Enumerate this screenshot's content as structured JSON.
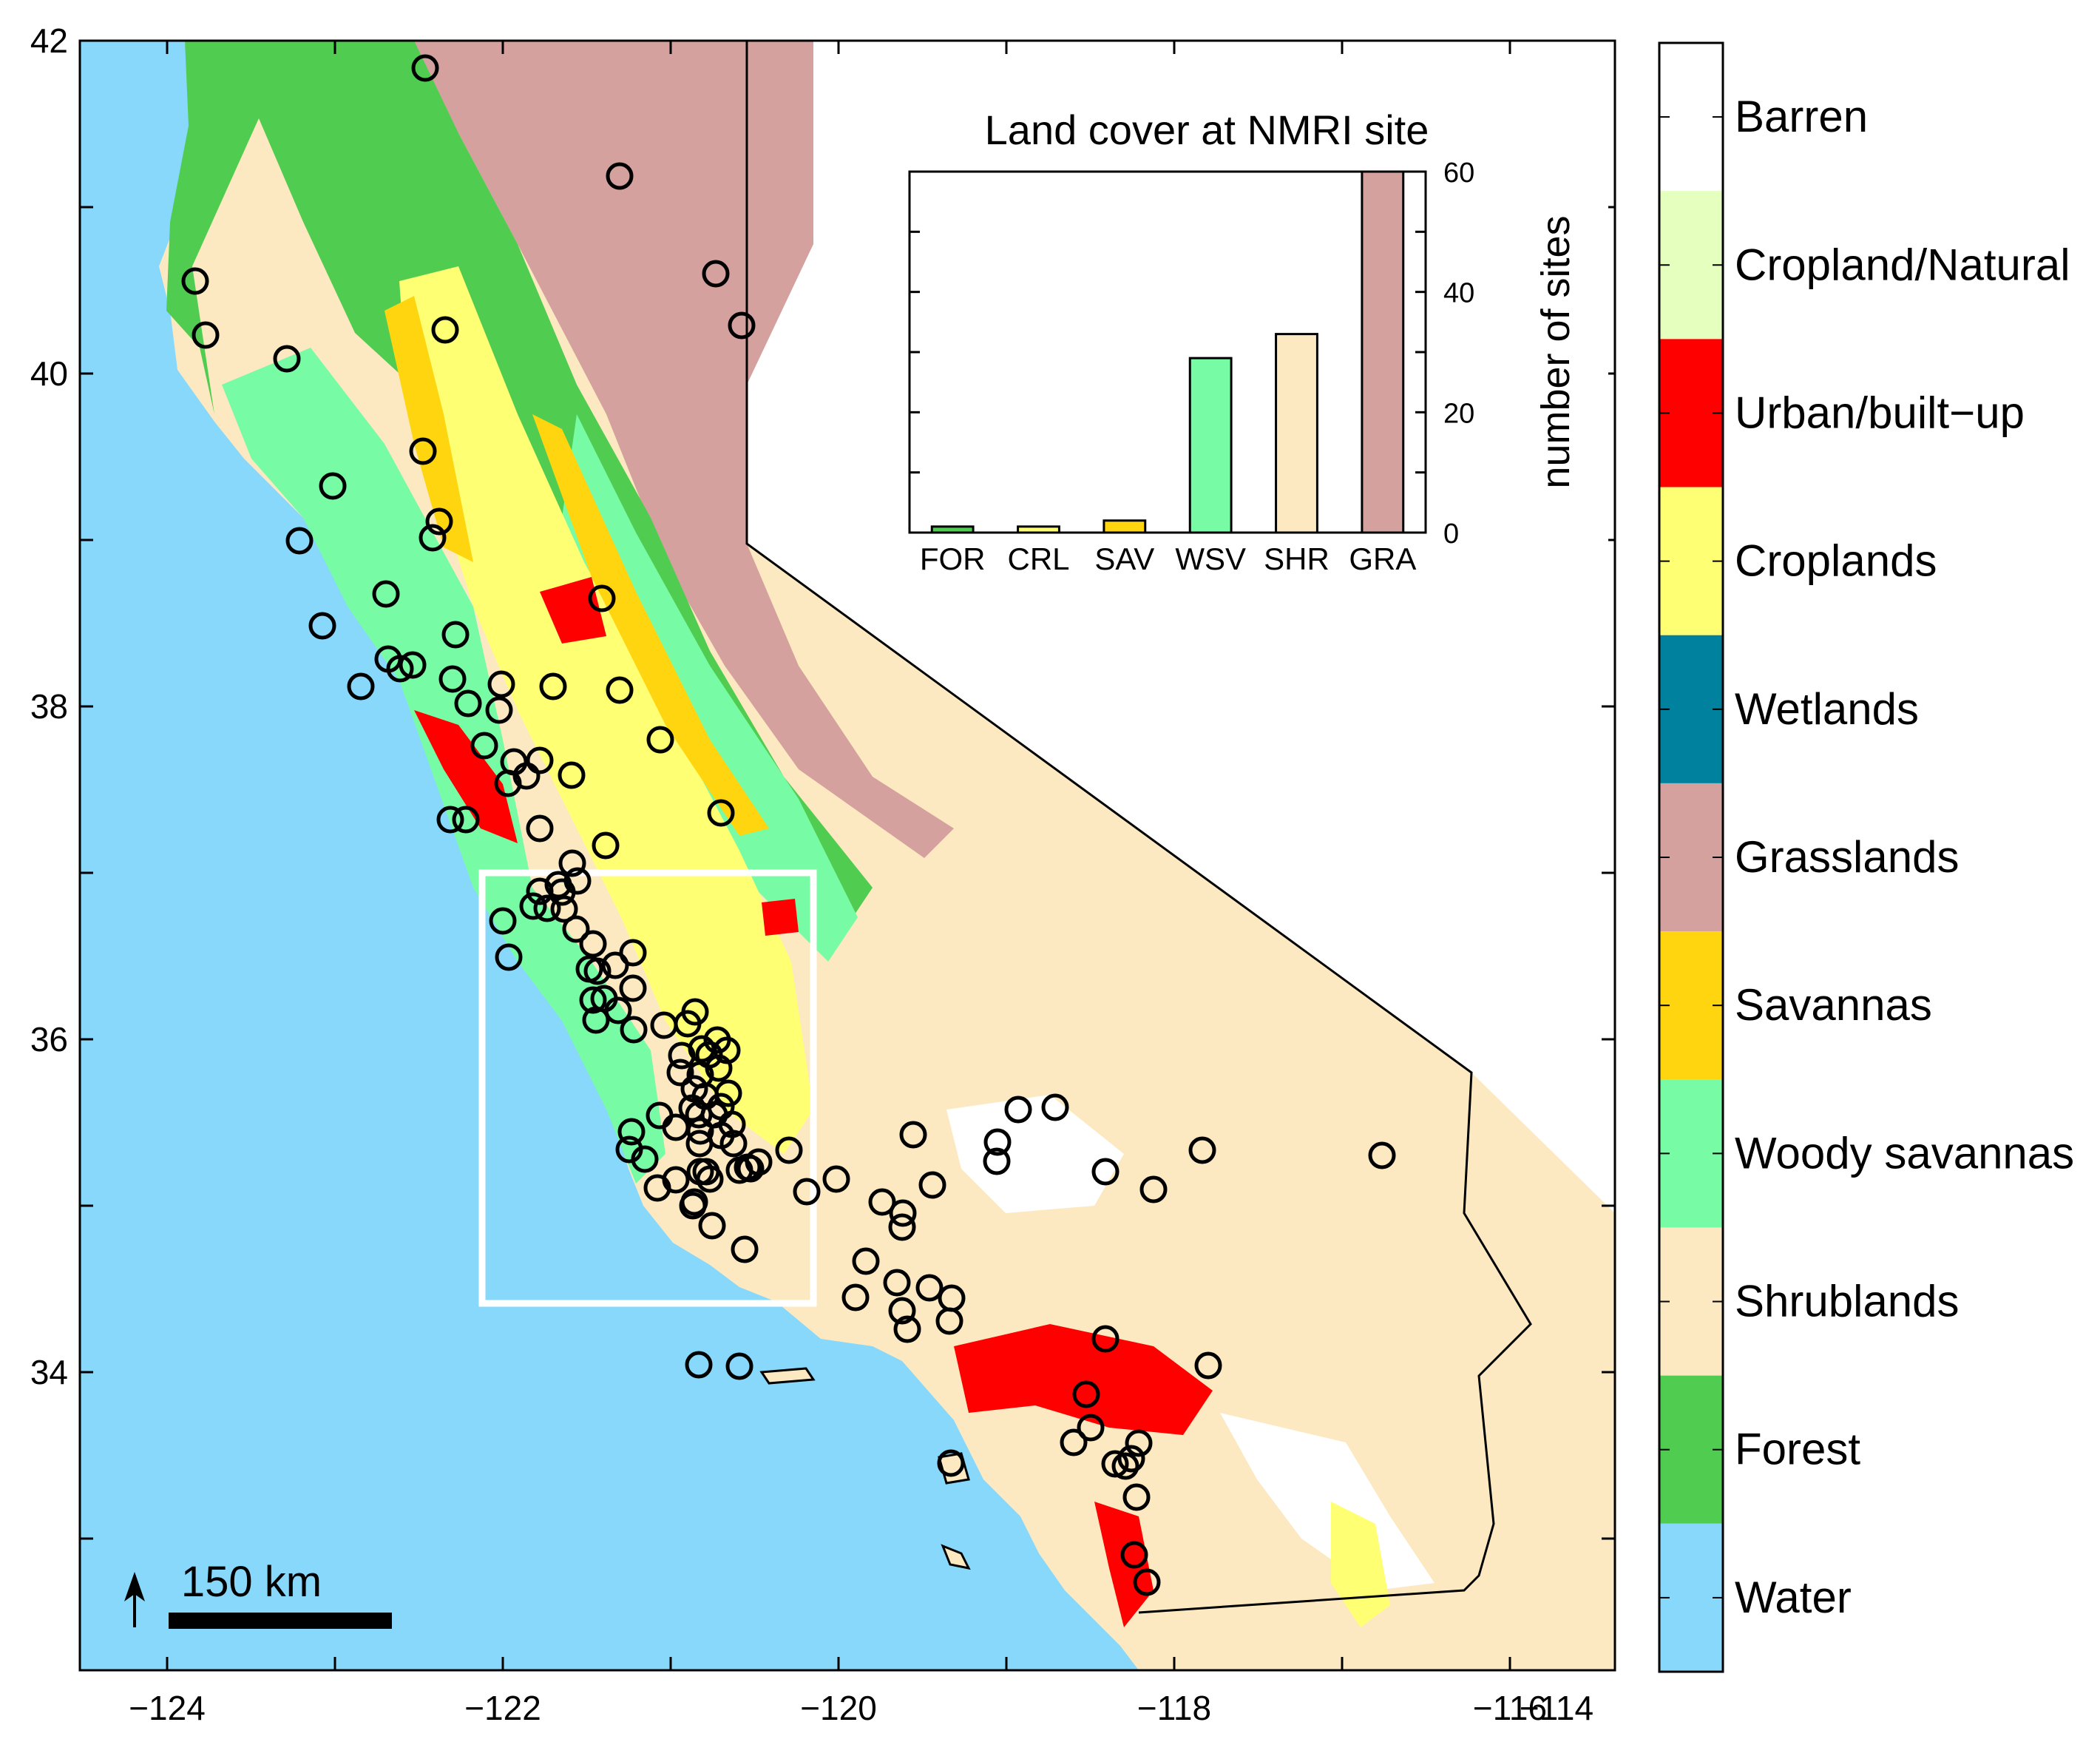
{
  "map": {
    "x_ticks": [
      "−124",
      "−122",
      "−120",
      "−118",
      "−116",
      "−114"
    ],
    "y_ticks": [
      "42",
      "40",
      "38",
      "36",
      "34"
    ],
    "scale_bar_label": "150 km"
  },
  "legend": {
    "items": [
      {
        "label": "Barren",
        "color": "#ffffff"
      },
      {
        "label": "Cropland/Natural",
        "color": "#e4ffbe"
      },
      {
        "label": "Urban/built−up",
        "color": "#ff0000"
      },
      {
        "label": "Croplands",
        "color": "#ffff73"
      },
      {
        "label": "Wetlands",
        "color": "#00829e"
      },
      {
        "label": "Grasslands",
        "color": "#d4a19e"
      },
      {
        "label": "Savannas",
        "color": "#ffd50f"
      },
      {
        "label": "Woody savannas",
        "color": "#78fba5"
      },
      {
        "label": "Shrublands",
        "color": "#fde9c1"
      },
      {
        "label": "Forest",
        "color": "#50cd50"
      },
      {
        "label": "Water",
        "color": "#87d8fb"
      }
    ]
  },
  "chart_data": {
    "type": "bar",
    "title": "Land cover at NMRI site",
    "ylabel": "number of sites",
    "ylim": [
      0,
      60
    ],
    "y_ticks": [
      "0",
      "20",
      "40",
      "60"
    ],
    "categories": [
      "FOR",
      "CRL",
      "SAV",
      "WSV",
      "SHR",
      "GRA"
    ],
    "values": [
      1,
      1,
      2,
      29,
      33,
      60
    ],
    "colors": [
      "#50cd50",
      "#ffff73",
      "#ffd50f",
      "#78fba5",
      "#fde9c1",
      "#d4a19e"
    ]
  }
}
